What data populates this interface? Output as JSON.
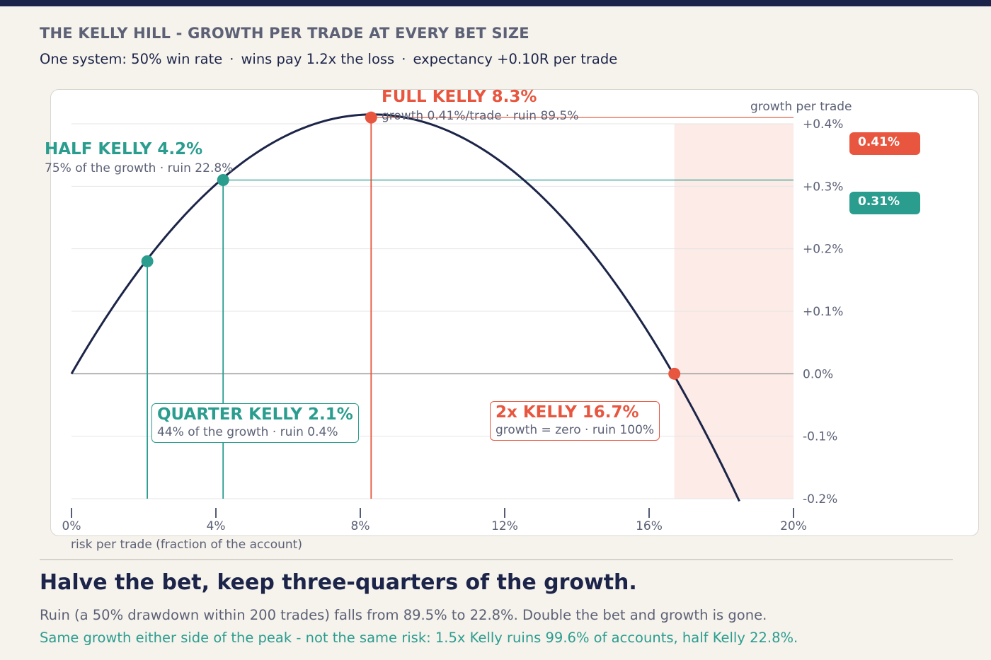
{
  "header": {
    "title": "THE KELLY HILL - GROWTH PER TRADE AT EVERY BET SIZE",
    "subtitle_parts": [
      "One system: 50% win rate",
      "wins pay 1.2x the loss",
      "expectancy +0.10R per trade"
    ],
    "separator": "·"
  },
  "chart_data": {
    "type": "line",
    "xlabel": "risk per trade (fraction of the account)",
    "ylabel": "growth per trade",
    "xlim": [
      0,
      20
    ],
    "ylim": [
      -0.2,
      0.4
    ],
    "x_ticks": [
      "0%",
      "4%",
      "8%",
      "12%",
      "16%",
      "20%"
    ],
    "x_tick_values": [
      0,
      4,
      8,
      12,
      16,
      20
    ],
    "y_ticks": [
      "+0.4%",
      "+0.3%",
      "+0.2%",
      "+0.1%",
      "0.0%",
      "-0.1%",
      "-0.2%"
    ],
    "y_tick_values": [
      0.4,
      0.3,
      0.2,
      0.1,
      0.0,
      -0.1,
      -0.2
    ],
    "grid": "horizontal",
    "win_rate": 0.5,
    "payoff": 1.2,
    "curve_x_end": 18.5,
    "danger_zone": [
      16.7,
      20
    ],
    "points": [
      {
        "x": 2.1,
        "y": 0.18,
        "color": "#2a9d8f"
      },
      {
        "x": 4.2,
        "y": 0.31,
        "color": "#2a9d8f"
      },
      {
        "x": 8.3,
        "y": 0.41,
        "color": "#e8563f"
      },
      {
        "x": 16.7,
        "y": 0.0,
        "color": "#e8563f"
      }
    ],
    "badges": [
      {
        "label": "0.41%",
        "y": 0.41,
        "color": "#e8563f"
      },
      {
        "label": "0.31%",
        "y": 0.31,
        "color": "#2a9d8f"
      }
    ],
    "annotations": {
      "full": {
        "title": "FULL KELLY 8.3%",
        "detail": "growth 0.41%/trade · ruin 89.5%"
      },
      "half": {
        "title": "HALF KELLY 4.2%",
        "detail": "75% of the growth · ruin 22.8%"
      },
      "quarter": {
        "title": "QUARTER KELLY 2.1%",
        "detail": "44% of the growth · ruin 0.4%"
      },
      "double": {
        "title": "2x KELLY 16.7%",
        "detail": "growth = zero · ruin 100%"
      }
    }
  },
  "footer": {
    "headline": "Halve the bet, keep three-quarters of the growth.",
    "note1": "Ruin (a 50% drawdown within 200 trades) falls from 89.5% to 22.8%. Double the bet and growth is gone.",
    "note2": "Same growth either side of the peak - not the same risk: 1.5x Kelly ruins 99.6% of accounts, half Kelly 22.8%."
  },
  "colors": {
    "navy": "#1c2549",
    "red": "#e8563f",
    "teal": "#2a9d8f",
    "danger_fill": "#fcebe7",
    "grid": "#e6e6e6"
  }
}
